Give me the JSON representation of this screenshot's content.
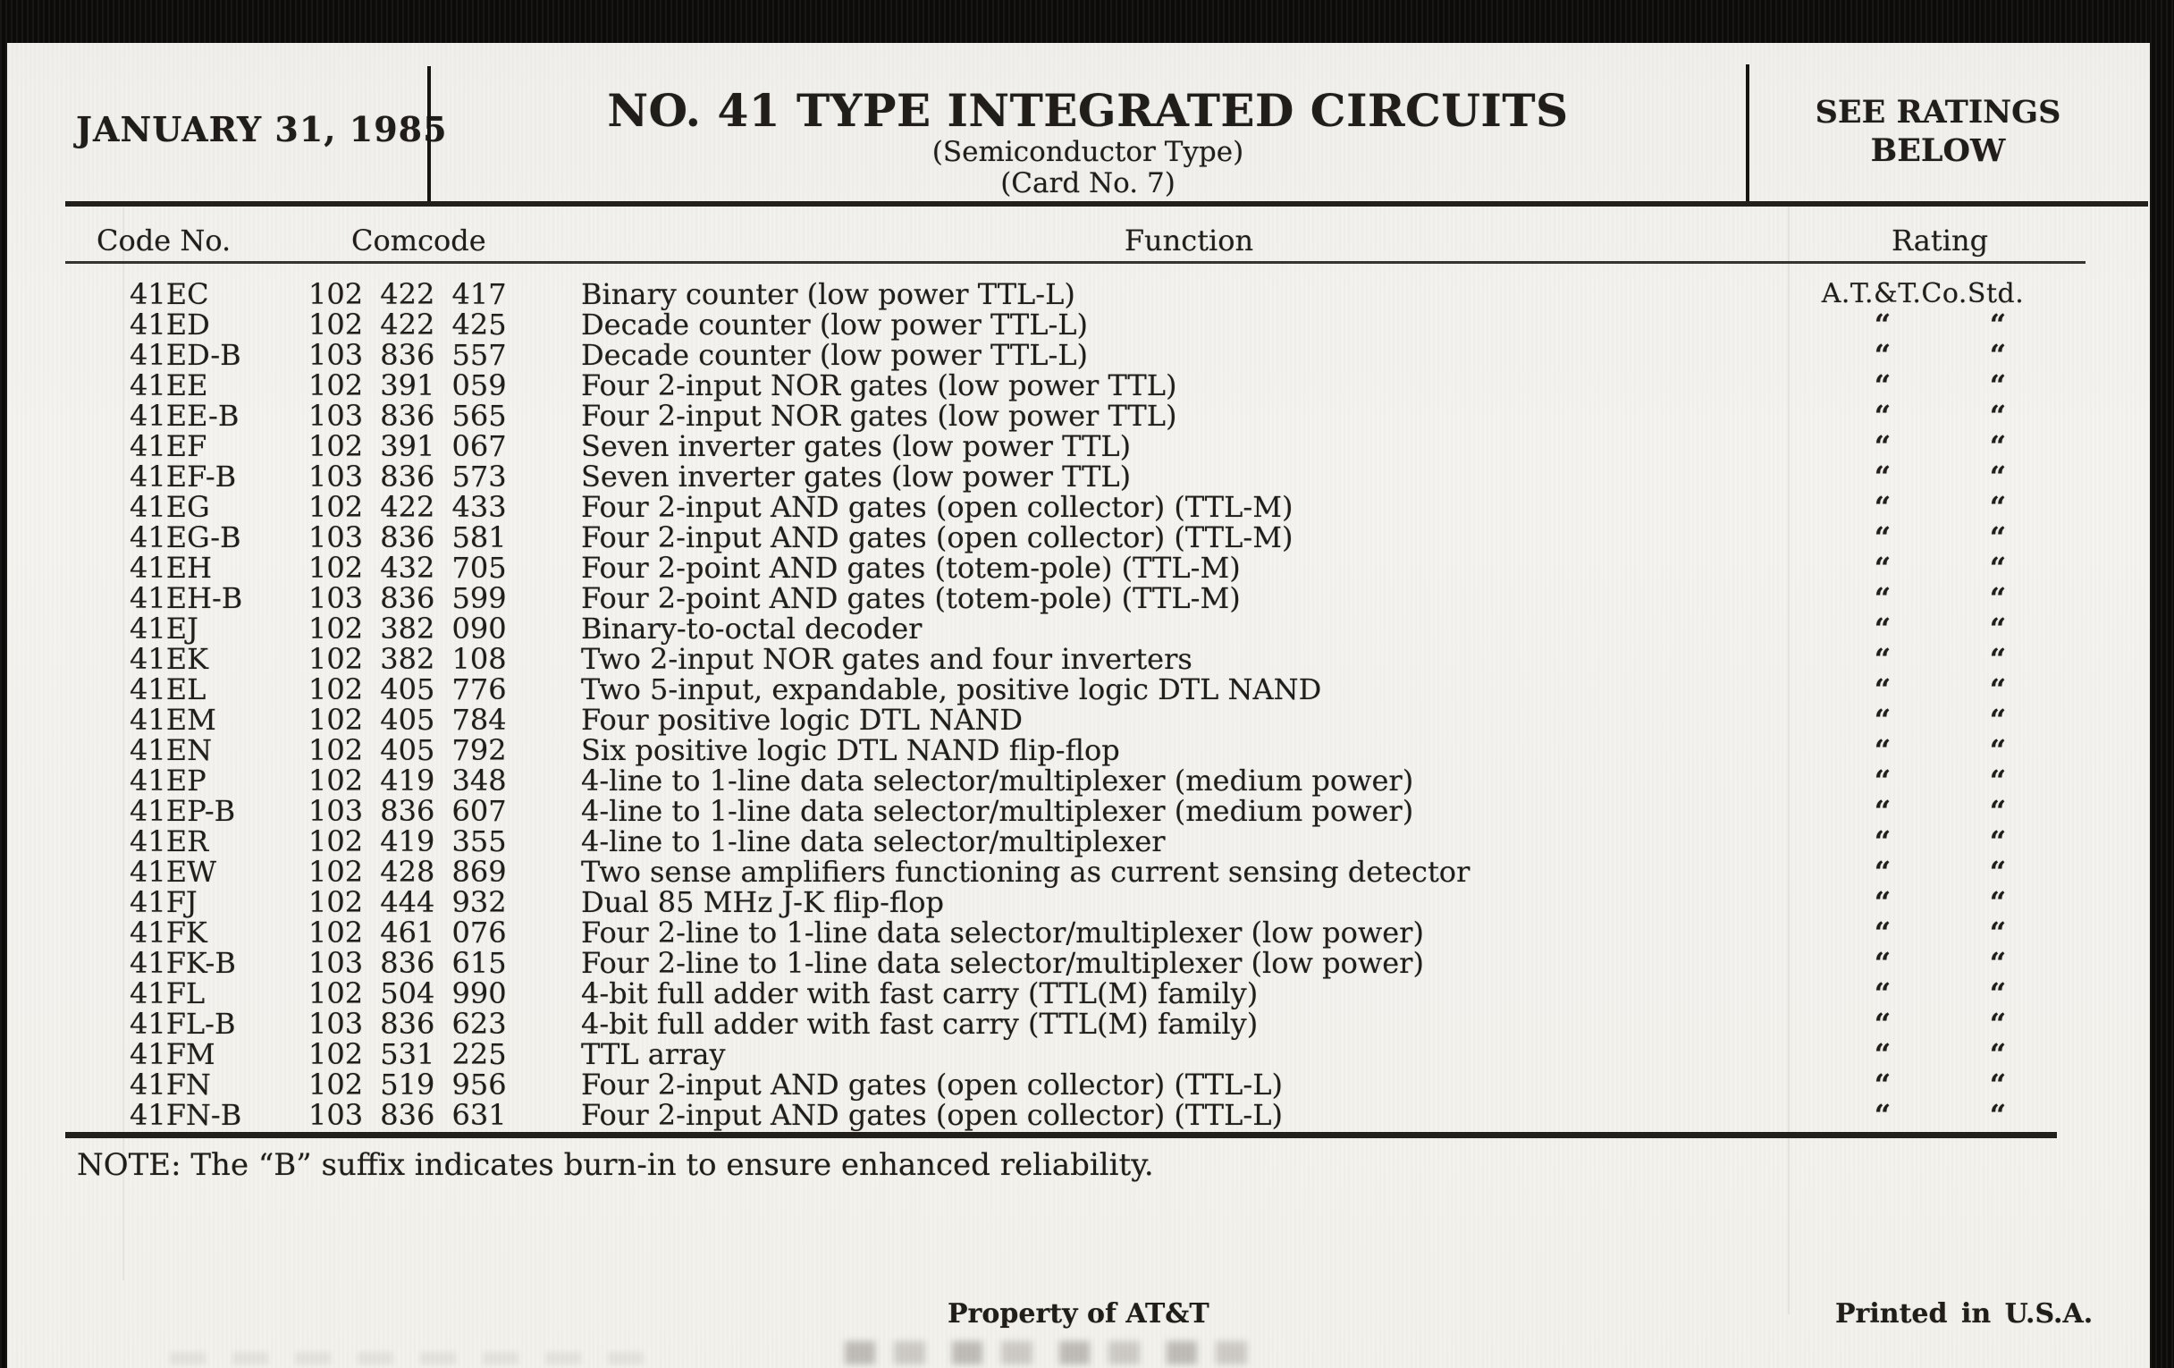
{
  "header": {
    "date": "JANUARY 31, 1985",
    "title": "NO. 41 TYPE INTEGRATED CIRCUITS",
    "subtitle_1": "(Semiconductor Type)",
    "subtitle_2": "(Card No. 7)",
    "ratings_banner_line1": "SEE RATINGS",
    "ratings_banner_line2": "BELOW"
  },
  "table": {
    "columns": {
      "code": "Code No.",
      "comcode": "Comcode",
      "function": "Function",
      "rating": "Rating"
    },
    "rating_standard": "A.T.&T.Co.Std.",
    "ditto_mark": "“",
    "ditto_pair": "“ “",
    "rows": [
      {
        "code": "41EC",
        "comcode": "102 422 417",
        "function": "Binary counter (low power TTL-L)",
        "rating": "A.T.&T.Co.Std."
      },
      {
        "code": "41ED",
        "comcode": "102 422 425",
        "function": "Decade counter (low power TTL-L)",
        "rating": "“ “"
      },
      {
        "code": "41ED-B",
        "comcode": "103 836 557",
        "function": "Decade counter (low power TTL-L)",
        "rating": "“ “"
      },
      {
        "code": "41EE",
        "comcode": "102 391 059",
        "function": "Four 2-input NOR gates (low power TTL)",
        "rating": "“ “"
      },
      {
        "code": "41EE-B",
        "comcode": "103 836 565",
        "function": "Four 2-input NOR gates (low power TTL)",
        "rating": "“ “"
      },
      {
        "code": "41EF",
        "comcode": "102 391 067",
        "function": "Seven inverter gates (low power TTL)",
        "rating": "“ “"
      },
      {
        "code": "41EF-B",
        "comcode": "103 836 573",
        "function": "Seven inverter gates (low power TTL)",
        "rating": "“ “"
      },
      {
        "code": "41EG",
        "comcode": "102 422 433",
        "function": "Four 2-input AND gates (open collector) (TTL-M)",
        "rating": "“ “"
      },
      {
        "code": "41EG-B",
        "comcode": "103 836 581",
        "function": "Four 2-input AND gates (open collector) (TTL-M)",
        "rating": "“ “"
      },
      {
        "code": "41EH",
        "comcode": "102 432 705",
        "function": "Four 2-point AND gates (totem-pole) (TTL-M)",
        "rating": "“ “"
      },
      {
        "code": "41EH-B",
        "comcode": "103 836 599",
        "function": "Four 2-point AND gates (totem-pole) (TTL-M)",
        "rating": "“ “"
      },
      {
        "code": "41EJ",
        "comcode": "102 382 090",
        "function": "Binary-to-octal decoder",
        "rating": "“ “"
      },
      {
        "code": "41EK",
        "comcode": "102 382 108",
        "function": "Two 2-input NOR gates and four inverters",
        "rating": "“ “"
      },
      {
        "code": "41EL",
        "comcode": "102 405 776",
        "function": "Two 5-input, expandable, positive logic DTL NAND",
        "rating": "“ “"
      },
      {
        "code": "41EM",
        "comcode": "102 405 784",
        "function": "Four positive logic DTL NAND",
        "rating": "“ “"
      },
      {
        "code": "41EN",
        "comcode": "102 405 792",
        "function": "Six positive logic DTL NAND flip-flop",
        "rating": "“ “"
      },
      {
        "code": "41EP",
        "comcode": "102 419 348",
        "function": "4-line to 1-line data selector/multiplexer (medium power)",
        "rating": "“ “"
      },
      {
        "code": "41EP-B",
        "comcode": "103 836 607",
        "function": "4-line to 1-line data selector/multiplexer (medium power)",
        "rating": "“ “"
      },
      {
        "code": "41ER",
        "comcode": "102 419 355",
        "function": "4-line to 1-line data selector/multiplexer",
        "rating": "“ “"
      },
      {
        "code": "41EW",
        "comcode": "102 428 869",
        "function": "Two sense amplifiers functioning as current sensing detector",
        "rating": "“ “"
      },
      {
        "code": "41FJ",
        "comcode": "102 444 932",
        "function": "Dual 85 MHz J-K flip-flop",
        "rating": "“ “"
      },
      {
        "code": "41FK",
        "comcode": "102 461 076",
        "function": "Four 2-line to 1-line data selector/multiplexer (low power)",
        "rating": "“ “"
      },
      {
        "code": "41FK-B",
        "comcode": "103 836 615",
        "function": "Four 2-line to 1-line data selector/multiplexer (low power)",
        "rating": "“ “"
      },
      {
        "code": "41FL",
        "comcode": "102 504 990",
        "function": "4-bit full adder with fast carry (TTL(M) family)",
        "rating": "“ “"
      },
      {
        "code": "41FL-B",
        "comcode": "103 836 623",
        "function": "4-bit full adder with fast carry (TTL(M) family)",
        "rating": "“ “"
      },
      {
        "code": "41FM",
        "comcode": "102 531 225",
        "function": "TTL array",
        "rating": "“ “"
      },
      {
        "code": "41FN",
        "comcode": "102 519 956",
        "function": "Four 2-input AND gates (open collector) (TTL-L)",
        "rating": "“ “"
      },
      {
        "code": "41FN-B",
        "comcode": "103 836 631",
        "function": "Four 2-input AND gates (open collector) (TTL-L)",
        "rating": "“ “"
      }
    ]
  },
  "footer": {
    "note": "NOTE: The “B” suffix indicates burn-in to ensure enhanced reliability.",
    "property_line": "Property of AT&T",
    "printed_line": "Printed in U.S.A."
  },
  "colors": {
    "paper": "#f4f2ee",
    "ink": "#211d18",
    "frame": "#0d0c0b"
  }
}
